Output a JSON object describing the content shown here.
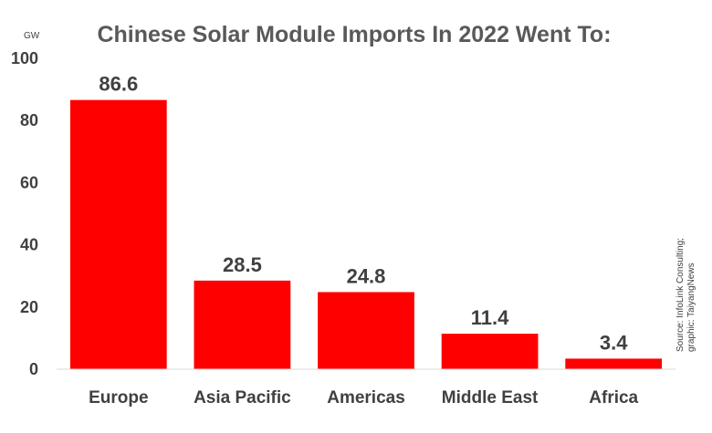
{
  "chart_data": {
    "type": "bar",
    "title": "Chinese Solar Module Imports In 2022 Went To:",
    "unit": "GW",
    "categories": [
      "Europe",
      "Asia Pacific",
      "Americas",
      "Middle East",
      "Africa"
    ],
    "values": [
      86.6,
      28.5,
      24.8,
      11.4,
      3.4
    ],
    "value_labels": [
      "86.6",
      "28.5",
      "24.8",
      "11.4",
      "3.4"
    ],
    "ylim": [
      0,
      100
    ],
    "yticks": [
      0,
      20,
      40,
      60,
      80,
      100
    ],
    "grid": false,
    "bar_color": "#ff0000",
    "source_lines": [
      "Source: InfoLink Consulting;",
      "graphic: TaiyangNews"
    ]
  }
}
